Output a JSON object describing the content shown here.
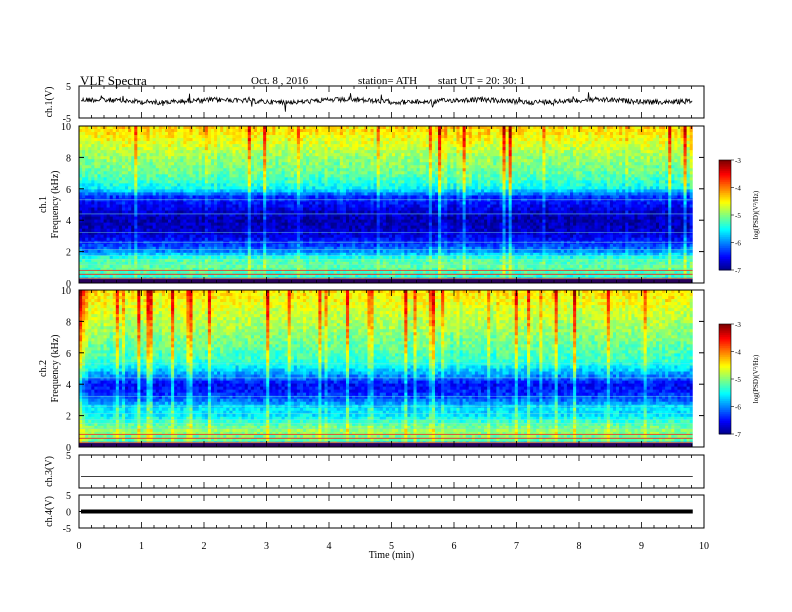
{
  "header": {
    "title": "VLF  Spectra",
    "date": "Oct. 8  , 2016",
    "station": "station= ATH",
    "start": "start  UT  =    20: 30: 1"
  },
  "chart_data": [
    {
      "type": "line",
      "panel": "ch1_waveform",
      "ylabel": "ch.1(V)",
      "ylim": [
        -5,
        5
      ],
      "yticks": [
        "5",
        "-5"
      ],
      "xlim": [
        0,
        10
      ],
      "signal_end_min": 9.82
    },
    {
      "type": "heatmap",
      "panel": "ch1_spectrogram",
      "ylabel_top": "ch.1",
      "ylabel": "Frequency  (kHz)",
      "ylim": [
        0,
        10
      ],
      "yticks": [
        "0",
        "2",
        "4",
        "6",
        "8",
        "10"
      ],
      "xlim": [
        0,
        10
      ],
      "data_end_min": 9.82,
      "color_scale": {
        "label": "log(PSD)(V²/Hz)",
        "range": [
          -7,
          -3
        ],
        "ticks": [
          "-3",
          "-4",
          "-5",
          "-6",
          "-7"
        ]
      },
      "psd_profile": {
        "freq_khz": [
          0,
          0.5,
          1,
          1.5,
          2,
          2.5,
          3,
          3.5,
          4,
          4.5,
          5,
          5.5,
          6,
          6.5,
          7,
          7.5,
          8,
          8.5,
          9,
          9.5,
          10
        ],
        "log_psd": [
          -5.6,
          -5.3,
          -5.1,
          -5.2,
          -5.95,
          -6.3,
          -6.6,
          -6.75,
          -6.8,
          -6.7,
          -6.5,
          -6.3,
          -5.5,
          -5.3,
          -5.1,
          -5.0,
          -4.9,
          -4.75,
          -4.6,
          -4.45,
          -4.35
        ]
      }
    },
    {
      "type": "heatmap",
      "panel": "ch2_spectrogram",
      "ylabel_top": "ch.2",
      "ylabel": "Frequency  (kHz)",
      "ylim": [
        0,
        10
      ],
      "yticks": [
        "0",
        "2",
        "4",
        "6",
        "8",
        "10"
      ],
      "xlim": [
        0,
        10
      ],
      "data_end_min": 9.82,
      "color_scale": {
        "label": "log(PSD)(V²/Hz)",
        "range": [
          -7,
          -3
        ],
        "ticks": [
          "-3",
          "-4",
          "-5",
          "-6",
          "-7"
        ]
      },
      "psd_profile": {
        "freq_khz": [
          0,
          0.5,
          1,
          1.5,
          2,
          2.5,
          3,
          3.5,
          4,
          4.5,
          5,
          5.5,
          6,
          6.5,
          7,
          7.5,
          8,
          8.5,
          9,
          9.5,
          10
        ],
        "log_psd": [
          -5.7,
          -5.1,
          -4.9,
          -5.2,
          -5.6,
          -5.6,
          -6.1,
          -6.4,
          -6.5,
          -6.0,
          -5.6,
          -5.3,
          -5.2,
          -5.1,
          -5.0,
          -4.9,
          -4.8,
          -4.7,
          -4.6,
          -4.5,
          -4.4
        ]
      }
    },
    {
      "type": "line",
      "panel": "ch3_waveform",
      "ylabel": "ch.3(V)",
      "ylim": [
        -5,
        5
      ],
      "yticks": [
        "5"
      ],
      "xlim": [
        0,
        10
      ],
      "signal_end_min": 9.82
    },
    {
      "type": "line",
      "panel": "ch4_waveform",
      "ylabel": "ch.4(V)",
      "ylim": [
        -5,
        5
      ],
      "yticks": [
        "5",
        "0",
        "-5"
      ],
      "xlim": [
        0,
        10
      ],
      "signal_end_min": 9.82,
      "xlabel": "Time  (min)",
      "xticks": [
        "0",
        "1",
        "2",
        "3",
        "4",
        "5",
        "6",
        "7",
        "8",
        "9",
        "10"
      ]
    }
  ]
}
